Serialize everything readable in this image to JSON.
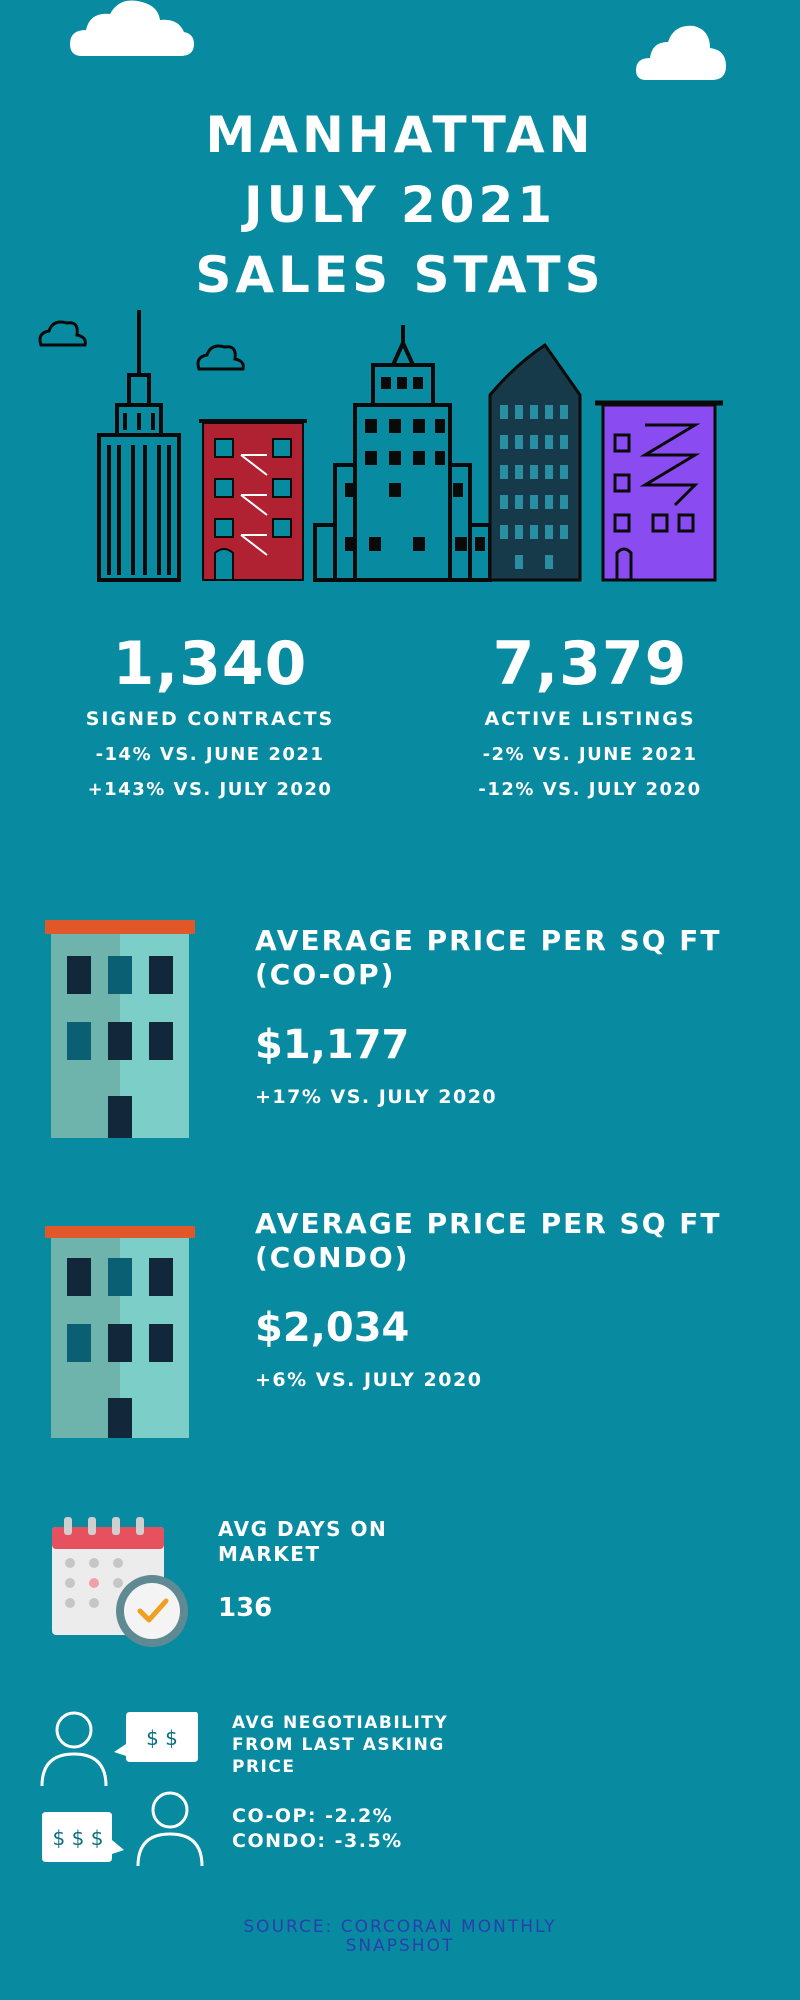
{
  "title": {
    "line1": "MANHATTAN",
    "line2": "JULY 2021",
    "line3": "SALES STATS"
  },
  "contracts": {
    "value": "1,340",
    "label": "SIGNED CONTRACTS",
    "vs_june": "-14% VS. JUNE 2021",
    "vs_july": "+143% VS. JULY 2020"
  },
  "listings": {
    "value": "7,379",
    "label": "ACTIVE LISTINGS",
    "vs_june": "-2% VS. JUNE 2021",
    "vs_july": "-12% VS. JULY 2020"
  },
  "coop": {
    "heading_line1": "AVERAGE PRICE PER SQ FT",
    "heading_line2": "(CO-OP)",
    "value": "$1,177",
    "comparison": "+17% VS. JULY 2020"
  },
  "condo": {
    "heading_line1": "AVERAGE PRICE PER SQ FT",
    "heading_line2": "(CONDO)",
    "value": "$2,034",
    "comparison": "+6% VS. JULY 2020"
  },
  "days_on_market": {
    "heading_line1": "AVG DAYS ON",
    "heading_line2": "MARKET",
    "value": "136"
  },
  "negotiability": {
    "heading_line1": "AVG NEGOTIABILITY",
    "heading_line2": "FROM LAST ASKING",
    "heading_line3": "PRICE",
    "coop": "CO-OP: -2.2%",
    "condo": "CONDO: -3.5%",
    "bubble_top": "$ $",
    "bubble_bottom": "$ $ $"
  },
  "source": {
    "line1": "SOURCE: CORCORAN MONTHLY",
    "line2": "SNAPSHOT"
  },
  "colors": {
    "background": "#088ba0",
    "text": "#ffffff",
    "source": "#2a3fae",
    "brick": "#b02232",
    "violet": "#8a4cf0",
    "outline": "#0a0a0a",
    "building_teal": "#7ccfc8",
    "roof": "#e0582a"
  }
}
